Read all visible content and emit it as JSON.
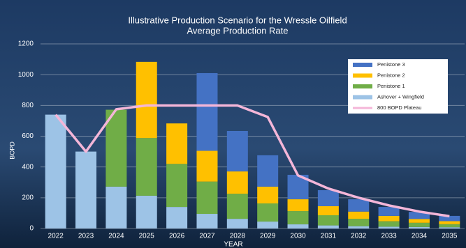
{
  "chart_data": {
    "type": "bar",
    "stacked": true,
    "title": "Illustrative Production Scenario for the Wressle Oilfield",
    "subtitle": "Average Production Rate",
    "x_label": "YEAR",
    "y_label": "BOPD",
    "categories": [
      "2022",
      "2023",
      "2024",
      "2025",
      "2026",
      "2027",
      "2028",
      "2029",
      "2030",
      "2031",
      "2032",
      "2033",
      "2034",
      "2035"
    ],
    "series": [
      {
        "name": "Ashover + Wingfield",
        "type": "bar",
        "color": "#9dc3e6",
        "values": [
          740,
          500,
          272,
          213,
          140,
          95,
          63,
          45,
          27,
          20,
          15,
          12,
          10,
          8
        ]
      },
      {
        "name": "Penistone 1",
        "type": "bar",
        "color": "#70ad47",
        "values": [
          0,
          0,
          500,
          375,
          280,
          210,
          163,
          118,
          86,
          66,
          48,
          35,
          27,
          20
        ]
      },
      {
        "name": "Penistone 2",
        "type": "bar",
        "color": "#ffc000",
        "values": [
          0,
          0,
          0,
          495,
          263,
          200,
          145,
          109,
          77,
          59,
          47,
          35,
          25,
          20
        ]
      },
      {
        "name": "Penistone 3",
        "type": "bar",
        "color": "#4472c4",
        "values": [
          0,
          0,
          0,
          0,
          0,
          505,
          263,
          204,
          159,
          104,
          80,
          58,
          46,
          34
        ]
      },
      {
        "name": "800 BOPD Plateau",
        "type": "line",
        "color": "#f4b6d8",
        "values": [
          740,
          500,
          775,
          800,
          800,
          800,
          800,
          725,
          345,
          260,
          200,
          150,
          110,
          80
        ]
      }
    ],
    "ylim": [
      0,
      1200
    ],
    "yticks": [
      0,
      200,
      400,
      600,
      800,
      1000,
      1200
    ],
    "grid": true
  }
}
